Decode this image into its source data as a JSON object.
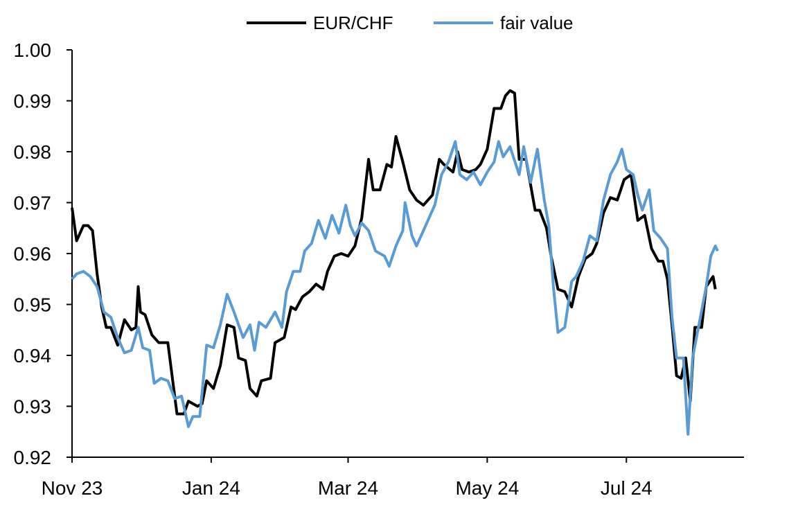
{
  "chart_data": {
    "type": "line",
    "title": "",
    "xlabel": "",
    "ylabel": "",
    "ylim": [
      0.92,
      1.0
    ],
    "yticks": [
      "1.00",
      "0.99",
      "0.98",
      "0.97",
      "0.96",
      "0.95",
      "0.94",
      "0.93",
      "0.92"
    ],
    "ytick_values": [
      1.0,
      0.99,
      0.98,
      0.97,
      0.96,
      0.95,
      0.94,
      0.93,
      0.92
    ],
    "xlim": [
      "2023-11-01",
      "2024-08-10"
    ],
    "xticks": [
      "Nov 23",
      "Jan 24",
      "Mar 24",
      "May 24",
      "Jul 24"
    ],
    "xtick_dates": [
      "2023-11-01",
      "2024-01-01",
      "2024-03-01",
      "2024-05-01",
      "2024-07-01"
    ],
    "grid": false,
    "legend_position": "top-center",
    "series": [
      {
        "name": "EUR/CHF",
        "color": "#000000",
        "points": [
          [
            "2023-11-01",
            0.969
          ],
          [
            "2023-11-03",
            0.9625
          ],
          [
            "2023-11-06",
            0.9655
          ],
          [
            "2023-11-08",
            0.9655
          ],
          [
            "2023-11-10",
            0.9645
          ],
          [
            "2023-11-12",
            0.956
          ],
          [
            "2023-11-14",
            0.9495
          ],
          [
            "2023-11-16",
            0.9455
          ],
          [
            "2023-11-18",
            0.9455
          ],
          [
            "2023-11-21",
            0.942
          ],
          [
            "2023-11-24",
            0.947
          ],
          [
            "2023-11-27",
            0.945
          ],
          [
            "2023-11-29",
            0.9455
          ],
          [
            "2023-11-30",
            0.9535
          ],
          [
            "2023-12-01",
            0.9485
          ],
          [
            "2023-12-03",
            0.948
          ],
          [
            "2023-12-06",
            0.944
          ],
          [
            "2023-12-09",
            0.9425
          ],
          [
            "2023-12-13",
            0.9425
          ],
          [
            "2023-12-15",
            0.9355
          ],
          [
            "2023-12-17",
            0.9285
          ],
          [
            "2023-12-20",
            0.9285
          ],
          [
            "2023-12-22",
            0.931
          ],
          [
            "2023-12-26",
            0.93
          ],
          [
            "2023-12-28",
            0.9305
          ],
          [
            "2023-12-30",
            0.935
          ],
          [
            "2024-01-02",
            0.9335
          ],
          [
            "2024-01-05",
            0.938
          ],
          [
            "2024-01-08",
            0.946
          ],
          [
            "2024-01-11",
            0.9455
          ],
          [
            "2024-01-13",
            0.9395
          ],
          [
            "2024-01-16",
            0.939
          ],
          [
            "2024-01-18",
            0.9335
          ],
          [
            "2024-01-21",
            0.932
          ],
          [
            "2024-01-23",
            0.935
          ],
          [
            "2024-01-27",
            0.9355
          ],
          [
            "2024-01-29",
            0.9425
          ],
          [
            "2024-02-02",
            0.9435
          ],
          [
            "2024-02-05",
            0.9495
          ],
          [
            "2024-02-07",
            0.949
          ],
          [
            "2024-02-10",
            0.9515
          ],
          [
            "2024-02-13",
            0.9525
          ],
          [
            "2024-02-16",
            0.954
          ],
          [
            "2024-02-19",
            0.953
          ],
          [
            "2024-02-21",
            0.9565
          ],
          [
            "2024-02-24",
            0.9595
          ],
          [
            "2024-02-27",
            0.96
          ],
          [
            "2024-03-01",
            0.9595
          ],
          [
            "2024-03-04",
            0.9615
          ],
          [
            "2024-03-07",
            0.967
          ],
          [
            "2024-03-10",
            0.9785
          ],
          [
            "2024-03-12",
            0.9725
          ],
          [
            "2024-03-15",
            0.9725
          ],
          [
            "2024-03-18",
            0.9775
          ],
          [
            "2024-03-20",
            0.977
          ],
          [
            "2024-03-22",
            0.983
          ],
          [
            "2024-03-25",
            0.978
          ],
          [
            "2024-03-28",
            0.9725
          ],
          [
            "2024-03-31",
            0.9705
          ],
          [
            "2024-04-03",
            0.9695
          ],
          [
            "2024-04-05",
            0.9705
          ],
          [
            "2024-04-07",
            0.9715
          ],
          [
            "2024-04-10",
            0.9785
          ],
          [
            "2024-04-12",
            0.9775
          ],
          [
            "2024-04-16",
            0.976
          ],
          [
            "2024-04-18",
            0.98
          ],
          [
            "2024-04-20",
            0.9765
          ],
          [
            "2024-04-23",
            0.976
          ],
          [
            "2024-04-26",
            0.9765
          ],
          [
            "2024-04-28",
            0.9775
          ],
          [
            "2024-05-01",
            0.9805
          ],
          [
            "2024-05-04",
            0.9885
          ],
          [
            "2024-05-07",
            0.9885
          ],
          [
            "2024-05-09",
            0.991
          ],
          [
            "2024-05-11",
            0.992
          ],
          [
            "2024-05-13",
            0.9915
          ],
          [
            "2024-05-15",
            0.9785
          ],
          [
            "2024-05-18",
            0.9785
          ],
          [
            "2024-05-20",
            0.9735
          ],
          [
            "2024-05-22",
            0.9685
          ],
          [
            "2024-05-24",
            0.9685
          ],
          [
            "2024-05-27",
            0.965
          ],
          [
            "2024-05-29",
            0.9595
          ],
          [
            "2024-06-01",
            0.953
          ],
          [
            "2024-06-04",
            0.9525
          ],
          [
            "2024-06-07",
            0.9495
          ],
          [
            "2024-06-10",
            0.9555
          ],
          [
            "2024-06-13",
            0.959
          ],
          [
            "2024-06-16",
            0.96
          ],
          [
            "2024-06-18",
            0.962
          ],
          [
            "2024-06-21",
            0.968
          ],
          [
            "2024-06-24",
            0.971
          ],
          [
            "2024-06-27",
            0.9705
          ],
          [
            "2024-06-30",
            0.9745
          ],
          [
            "2024-07-03",
            0.9755
          ],
          [
            "2024-07-06",
            0.9665
          ],
          [
            "2024-07-09",
            0.9675
          ],
          [
            "2024-07-12",
            0.961
          ],
          [
            "2024-07-15",
            0.9585
          ],
          [
            "2024-07-17",
            0.9585
          ],
          [
            "2024-07-19",
            0.955
          ],
          [
            "2024-07-21",
            0.946
          ],
          [
            "2024-07-23",
            0.936
          ],
          [
            "2024-07-25",
            0.9355
          ],
          [
            "2024-07-27",
            0.9395
          ],
          [
            "2024-07-29",
            0.931
          ],
          [
            "2024-07-31",
            0.9455
          ],
          [
            "2024-08-03",
            0.9455
          ],
          [
            "2024-08-05",
            0.9535
          ],
          [
            "2024-08-08",
            0.9555
          ],
          [
            "2024-08-09",
            0.953
          ]
        ]
      },
      {
        "name": "fair value",
        "color": "#5B9BD5",
        "points": [
          [
            "2023-11-01",
            0.955
          ],
          [
            "2023-11-03",
            0.956
          ],
          [
            "2023-11-06",
            0.9565
          ],
          [
            "2023-11-09",
            0.9555
          ],
          [
            "2023-11-12",
            0.9535
          ],
          [
            "2023-11-15",
            0.9485
          ],
          [
            "2023-11-18",
            0.9475
          ],
          [
            "2023-11-21",
            0.9435
          ],
          [
            "2023-11-24",
            0.9405
          ],
          [
            "2023-11-27",
            0.941
          ],
          [
            "2023-11-30",
            0.9455
          ],
          [
            "2023-12-02",
            0.9415
          ],
          [
            "2023-12-05",
            0.941
          ],
          [
            "2023-12-07",
            0.9345
          ],
          [
            "2023-12-10",
            0.9355
          ],
          [
            "2023-12-13",
            0.935
          ],
          [
            "2023-12-16",
            0.9315
          ],
          [
            "2023-12-19",
            0.932
          ],
          [
            "2023-12-22",
            0.926
          ],
          [
            "2023-12-24",
            0.928
          ],
          [
            "2023-12-27",
            0.928
          ],
          [
            "2023-12-30",
            0.942
          ],
          [
            "2024-01-02",
            0.9415
          ],
          [
            "2024-01-05",
            0.946
          ],
          [
            "2024-01-08",
            0.952
          ],
          [
            "2024-01-11",
            0.9485
          ],
          [
            "2024-01-13",
            0.946
          ],
          [
            "2024-01-15",
            0.9435
          ],
          [
            "2024-01-18",
            0.946
          ],
          [
            "2024-01-20",
            0.941
          ],
          [
            "2024-01-22",
            0.9465
          ],
          [
            "2024-01-25",
            0.9455
          ],
          [
            "2024-01-29",
            0.9485
          ],
          [
            "2024-02-01",
            0.9455
          ],
          [
            "2024-02-03",
            0.9525
          ],
          [
            "2024-02-06",
            0.9565
          ],
          [
            "2024-02-09",
            0.9565
          ],
          [
            "2024-02-11",
            0.9605
          ],
          [
            "2024-02-14",
            0.962
          ],
          [
            "2024-02-17",
            0.9665
          ],
          [
            "2024-02-20",
            0.963
          ],
          [
            "2024-02-23",
            0.9675
          ],
          [
            "2024-02-26",
            0.964
          ],
          [
            "2024-02-29",
            0.9695
          ],
          [
            "2024-03-02",
            0.9655
          ],
          [
            "2024-03-04",
            0.9635
          ],
          [
            "2024-03-07",
            0.966
          ],
          [
            "2024-03-10",
            0.9645
          ],
          [
            "2024-03-13",
            0.9605
          ],
          [
            "2024-03-17",
            0.9595
          ],
          [
            "2024-03-19",
            0.9575
          ],
          [
            "2024-03-22",
            0.9615
          ],
          [
            "2024-03-25",
            0.9645
          ],
          [
            "2024-03-26",
            0.97
          ],
          [
            "2024-03-29",
            0.9635
          ],
          [
            "2024-03-31",
            0.9615
          ],
          [
            "2024-04-03",
            0.9645
          ],
          [
            "2024-04-05",
            0.9665
          ],
          [
            "2024-04-08",
            0.9695
          ],
          [
            "2024-04-11",
            0.9755
          ],
          [
            "2024-04-14",
            0.978
          ],
          [
            "2024-04-17",
            0.982
          ],
          [
            "2024-04-19",
            0.9755
          ],
          [
            "2024-04-22",
            0.9745
          ],
          [
            "2024-04-25",
            0.976
          ],
          [
            "2024-04-28",
            0.9735
          ],
          [
            "2024-05-01",
            0.976
          ],
          [
            "2024-05-04",
            0.978
          ],
          [
            "2024-05-06",
            0.982
          ],
          [
            "2024-05-08",
            0.979
          ],
          [
            "2024-05-11",
            0.981
          ],
          [
            "2024-05-15",
            0.9755
          ],
          [
            "2024-05-17",
            0.981
          ],
          [
            "2024-05-20",
            0.974
          ],
          [
            "2024-05-23",
            0.9805
          ],
          [
            "2024-05-26",
            0.9705
          ],
          [
            "2024-05-28",
            0.9655
          ],
          [
            "2024-05-30",
            0.9535
          ],
          [
            "2024-06-01",
            0.9445
          ],
          [
            "2024-06-04",
            0.9455
          ],
          [
            "2024-06-07",
            0.9545
          ],
          [
            "2024-06-09",
            0.9555
          ],
          [
            "2024-06-12",
            0.9585
          ],
          [
            "2024-06-15",
            0.9635
          ],
          [
            "2024-06-18",
            0.9625
          ],
          [
            "2024-06-21",
            0.9705
          ],
          [
            "2024-06-24",
            0.9755
          ],
          [
            "2024-06-27",
            0.978
          ],
          [
            "2024-06-29",
            0.9805
          ],
          [
            "2024-07-01",
            0.9765
          ],
          [
            "2024-07-04",
            0.9755
          ],
          [
            "2024-07-06",
            0.9715
          ],
          [
            "2024-07-08",
            0.9685
          ],
          [
            "2024-07-11",
            0.9725
          ],
          [
            "2024-07-13",
            0.9645
          ],
          [
            "2024-07-16",
            0.963
          ],
          [
            "2024-07-19",
            0.961
          ],
          [
            "2024-07-21",
            0.9475
          ],
          [
            "2024-07-23",
            0.9395
          ],
          [
            "2024-07-26",
            0.9395
          ],
          [
            "2024-07-28",
            0.9245
          ],
          [
            "2024-07-30",
            0.9395
          ],
          [
            "2024-08-02",
            0.9465
          ],
          [
            "2024-08-05",
            0.9535
          ],
          [
            "2024-08-07",
            0.9595
          ],
          [
            "2024-08-09",
            0.9615
          ],
          [
            "2024-08-10",
            0.9605
          ]
        ]
      }
    ]
  }
}
